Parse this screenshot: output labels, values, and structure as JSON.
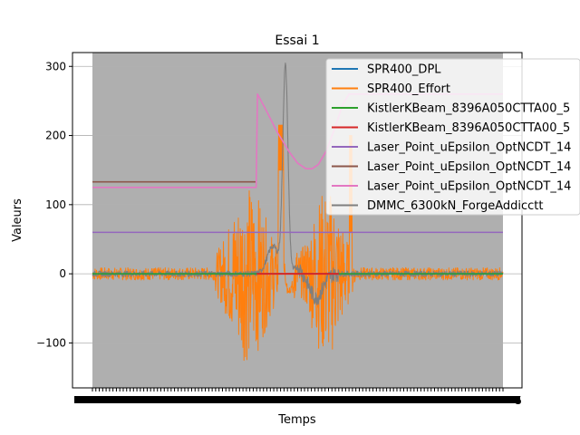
{
  "chart_data": {
    "type": "line",
    "title": "Essai 1",
    "xlabel": "Temps",
    "ylabel": "Valeurs",
    "ylim": [
      -165,
      320
    ],
    "yticks": [
      -100,
      0,
      100,
      200,
      300
    ],
    "ytick_labels": [
      "−100",
      "0",
      "100",
      "200",
      "300"
    ],
    "x_tick_label_fragment": "5",
    "x_range": [
      0,
      100
    ],
    "grid": true,
    "legend_position": "top-right",
    "series": [
      {
        "name": "SPR400_DPL",
        "color": "#1f77b4",
        "shape": "flat",
        "level": 0
      },
      {
        "name": "SPR400_Effort",
        "color": "#ff7f0e",
        "shape": "noisy",
        "baseline": 0,
        "notes": "high-amplitude oscillation approx -140 to 215; spikes near x=46 and x=63"
      },
      {
        "name": "KistlerKBeam_8396A050CTTA00_5",
        "color": "#2ca02c",
        "shape": "flat",
        "level": 0
      },
      {
        "name": "KistlerKBeam_8396A050CTTA00_5",
        "color": "#d62728",
        "shape": "flat",
        "level": 0
      },
      {
        "name": "Laser_Point_uEpsilon_OptNCDT_14",
        "color": "#9467bd",
        "shape": "flat",
        "level": 60
      },
      {
        "name": "Laser_Point_uEpsilon_OptNCDT_14",
        "color": "#8c564b",
        "shape": "step",
        "level": 133
      },
      {
        "name": "Laser_Point_uEpsilon_OptNCDT_14",
        "color": "#e377c2",
        "shape": "curve",
        "points": [
          [
            0,
            125
          ],
          [
            39.9,
            125
          ],
          [
            39.9,
            128
          ],
          [
            40.2,
            260
          ],
          [
            42,
            240
          ],
          [
            45,
            205
          ],
          [
            48,
            176
          ],
          [
            50,
            160
          ],
          [
            52,
            152
          ],
          [
            53.5,
            152
          ],
          [
            55,
            158
          ],
          [
            57,
            178
          ],
          [
            59,
            210
          ],
          [
            61,
            245
          ],
          [
            62.5,
            260
          ],
          [
            100,
            260
          ]
        ]
      },
      {
        "name": "DMMC_6300kN_ForgeAddicctt",
        "color": "#7f7f7f",
        "shape": "noisy",
        "baseline": 0,
        "notes": "noise near 0, rising to peak 298 near x=47, dip to about -35 near x=55"
      }
    ]
  }
}
